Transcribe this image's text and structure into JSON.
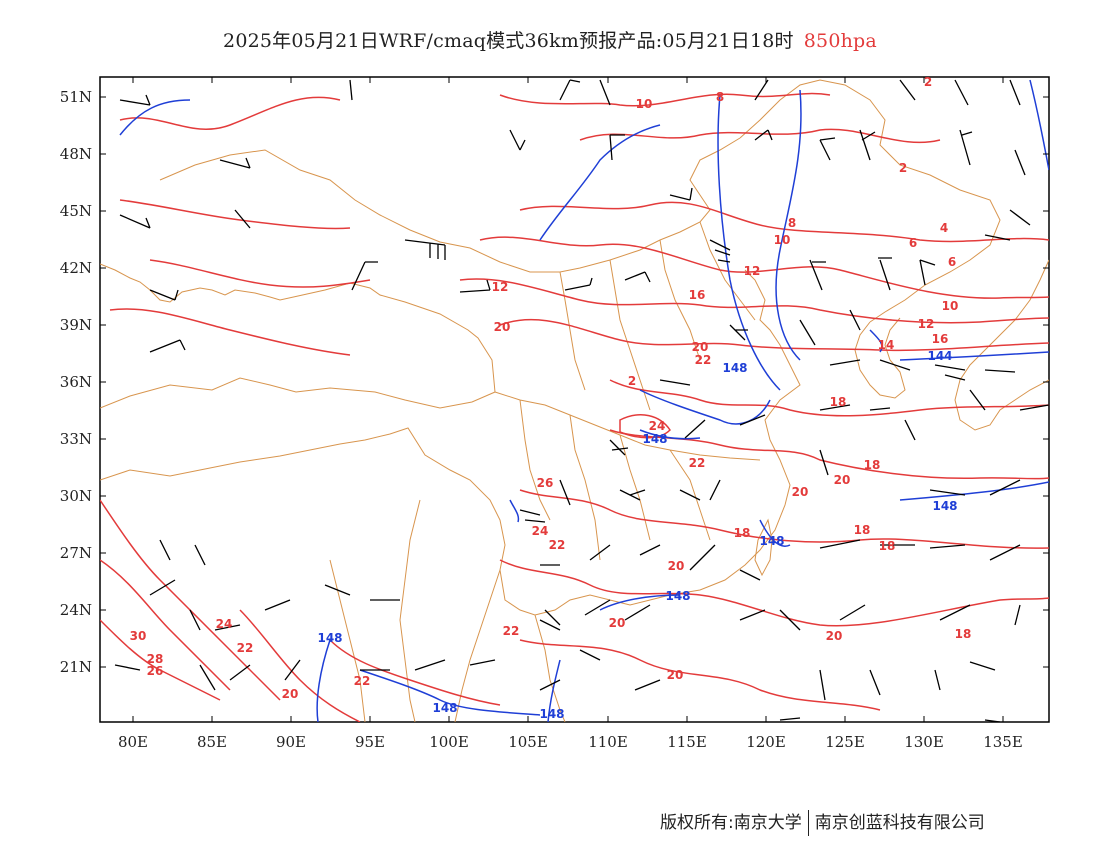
{
  "title": {
    "main": "2025年05月21日WRF/cmaq模式36km预报产品:05月21日18时",
    "level": "850hpa"
  },
  "axes": {
    "x_ticks": [
      "80E",
      "85E",
      "90E",
      "95E",
      "100E",
      "105E",
      "110E",
      "115E",
      "120E",
      "125E",
      "130E",
      "135E"
    ],
    "y_ticks": [
      "51N",
      "48N",
      "45N",
      "42N",
      "39N",
      "36N",
      "33N",
      "30N",
      "27N",
      "24N",
      "21N"
    ]
  },
  "colors": {
    "temperature_contour": "#e33b3b",
    "height_contour": "#1f3fd6",
    "border": "#d8954e",
    "wind_barb": "#000000"
  },
  "temperature_labels": [
    {
      "text": "10"
    },
    {
      "text": "8"
    },
    {
      "text": "2"
    },
    {
      "text": "2"
    },
    {
      "text": "8"
    },
    {
      "text": "10"
    },
    {
      "text": "6"
    },
    {
      "text": "4"
    },
    {
      "text": "6"
    },
    {
      "text": "12"
    },
    {
      "text": "16"
    },
    {
      "text": "10"
    },
    {
      "text": "12"
    },
    {
      "text": "12"
    },
    {
      "text": "20"
    },
    {
      "text": "14"
    },
    {
      "text": "16"
    },
    {
      "text": "20"
    },
    {
      "text": "22"
    },
    {
      "text": "2"
    },
    {
      "text": "24"
    },
    {
      "text": "18"
    },
    {
      "text": "22"
    },
    {
      "text": "18"
    },
    {
      "text": "20"
    },
    {
      "text": "20"
    },
    {
      "text": "26"
    },
    {
      "text": "24"
    },
    {
      "text": "22"
    },
    {
      "text": "18"
    },
    {
      "text": "18"
    },
    {
      "text": "18"
    },
    {
      "text": "20"
    },
    {
      "text": "20"
    },
    {
      "text": "22"
    },
    {
      "text": "20"
    },
    {
      "text": "30"
    },
    {
      "text": "28"
    },
    {
      "text": "26"
    },
    {
      "text": "24"
    },
    {
      "text": "22"
    },
    {
      "text": "22"
    },
    {
      "text": "20"
    },
    {
      "text": "20"
    },
    {
      "text": "18"
    }
  ],
  "height_labels": [
    {
      "text": "148"
    },
    {
      "text": "148"
    },
    {
      "text": "144"
    },
    {
      "text": "148"
    },
    {
      "text": "148"
    },
    {
      "text": "148"
    },
    {
      "text": "148"
    },
    {
      "text": "148"
    },
    {
      "text": "148"
    }
  ],
  "footer": {
    "left": "版权所有:南京大学",
    "right": "南京创蓝科技有限公司"
  }
}
